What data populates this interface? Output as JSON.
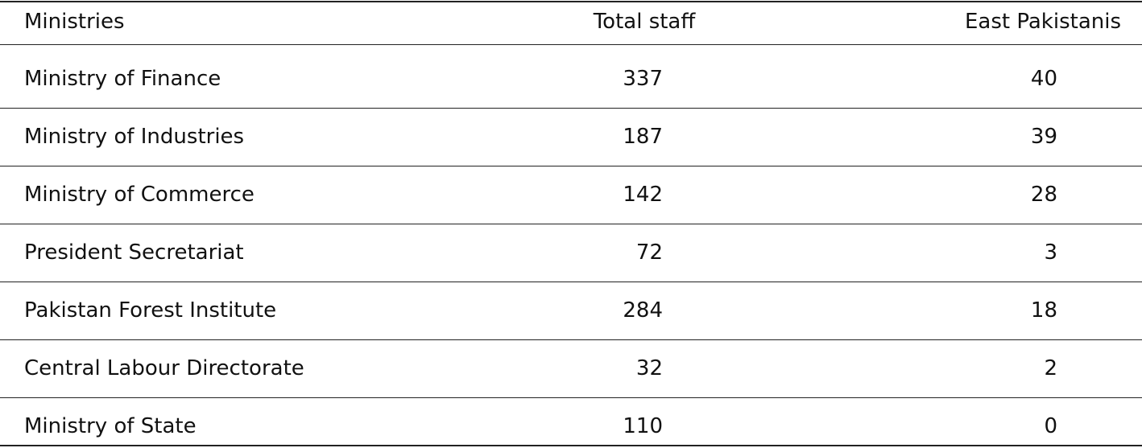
{
  "table": {
    "header": [
      "Ministries",
      "Total staff",
      "East Pakistanis"
    ],
    "rows": [
      [
        "Ministry of Finance",
        337,
        40
      ],
      [
        "Ministry of Industries",
        187,
        39
      ],
      [
        "Ministry of Commerce",
        142,
        28
      ],
      [
        "President Secretariat",
        72,
        3
      ],
      [
        "Pakistan Forest Institute",
        284,
        18
      ],
      [
        "Central Labour Directorate",
        32,
        2
      ],
      [
        "Ministry of State",
        110,
        0
      ]
    ]
  }
}
